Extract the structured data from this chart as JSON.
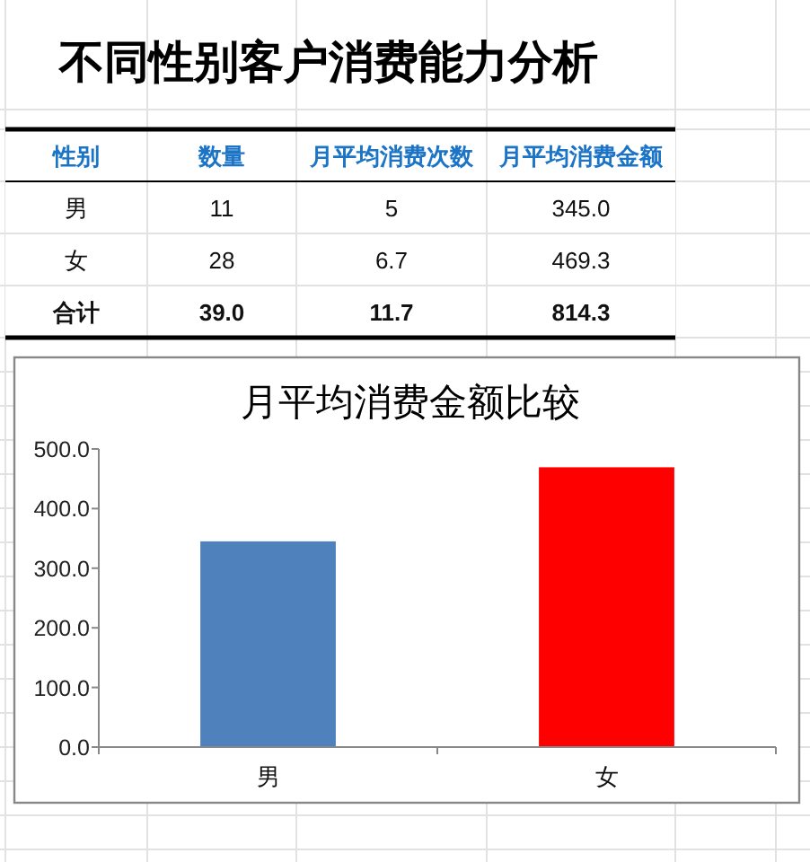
{
  "chart_data": [
    {
      "type": "other",
      "title": "不同性别客户消费能力分析",
      "categories": [
        "性别",
        "数量",
        "月平均消费次数",
        "月平均消费金额"
      ],
      "cell_labels": [
        [
          "男",
          "11",
          "5",
          "345.0"
        ],
        [
          "女",
          "28",
          "6.7",
          "469.3"
        ],
        [
          "合计",
          "39.0",
          "11.7",
          "814.3"
        ]
      ]
    },
    {
      "type": "bar",
      "title": "月平均消费金额比较",
      "categories": [
        "男",
        "女"
      ],
      "values": [
        345.0,
        469.3
      ],
      "colors": [
        "#4f81bd",
        "#ff0000"
      ],
      "ylim": [
        0,
        500
      ],
      "yticks": [
        {
          "value": 0,
          "label": "0.0"
        },
        {
          "value": 100,
          "label": "100.0"
        },
        {
          "value": 200,
          "label": "200.0"
        },
        {
          "value": 300,
          "label": "300.0"
        },
        {
          "value": 400,
          "label": "400.0"
        },
        {
          "value": 500,
          "label": "500.0"
        }
      ]
    }
  ]
}
